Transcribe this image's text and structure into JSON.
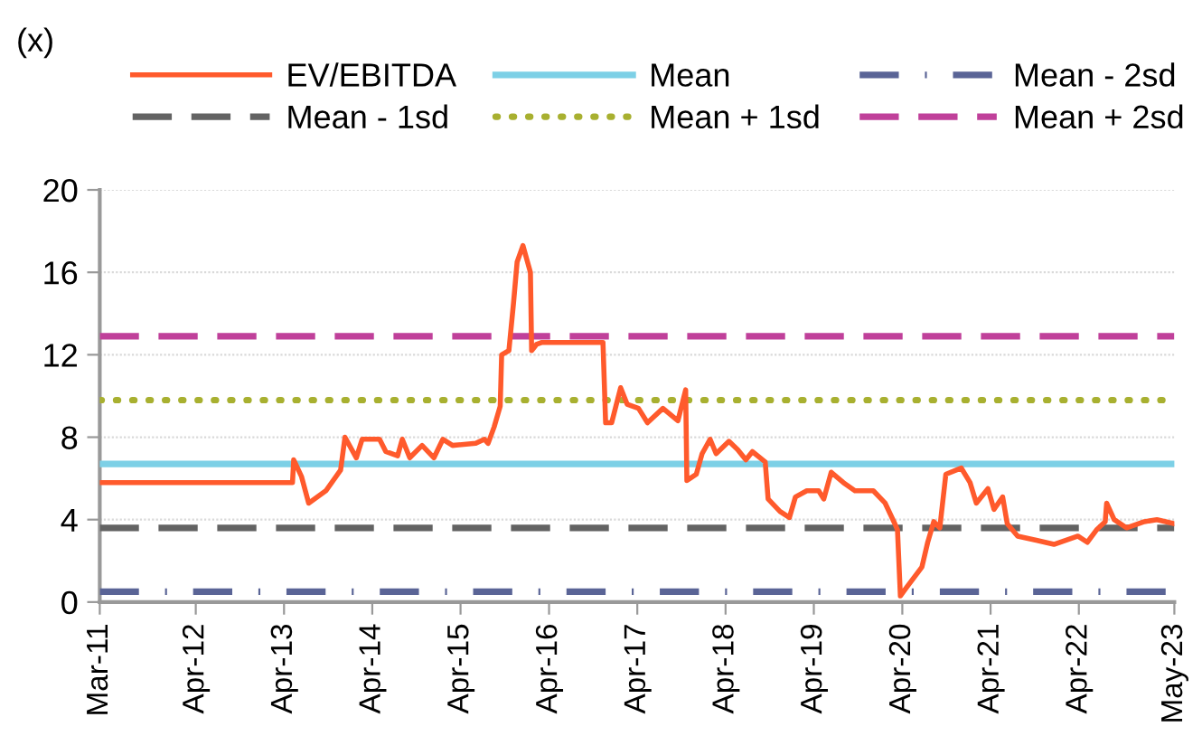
{
  "chart_data": {
    "type": "line",
    "ylabel": "(x)",
    "xlim": [
      "2011-03-01",
      "2023-05-01"
    ],
    "ylim": [
      0,
      20
    ],
    "yticks": [
      0,
      4,
      8,
      12,
      16,
      20
    ],
    "xticks": [
      {
        "value": "2011-03-01",
        "label": "Mar-11"
      },
      {
        "value": "2012-04-01",
        "label": "Apr-12"
      },
      {
        "value": "2013-04-01",
        "label": "Apr-13"
      },
      {
        "value": "2014-04-01",
        "label": "Apr-14"
      },
      {
        "value": "2015-04-01",
        "label": "Apr-15"
      },
      {
        "value": "2016-04-01",
        "label": "Apr-16"
      },
      {
        "value": "2017-04-01",
        "label": "Apr-17"
      },
      {
        "value": "2018-04-01",
        "label": "Apr-18"
      },
      {
        "value": "2019-04-01",
        "label": "Apr-19"
      },
      {
        "value": "2020-04-01",
        "label": "Apr-20"
      },
      {
        "value": "2021-04-01",
        "label": "Apr-21"
      },
      {
        "value": "2022-04-01",
        "label": "Apr-22"
      },
      {
        "value": "2023-05-01",
        "label": "May-23"
      }
    ],
    "grid": "y",
    "legend": "top",
    "series": [
      {
        "name": "EV/EBITDA",
        "color": "#ff5a2c",
        "line_style": "solid",
        "x": [
          "2011-03-01",
          "2013-05-06",
          "2013-05-11",
          "2013-06-12",
          "2013-07-12",
          "2013-09-21",
          "2013-11-21",
          "2013-12-09",
          "2014-01-25",
          "2014-02-18",
          "2014-05-01",
          "2014-05-27",
          "2014-07-15",
          "2014-08-03",
          "2014-09-03",
          "2014-10-24",
          "2014-12-12",
          "2015-01-18",
          "2015-02-27",
          "2015-06-03",
          "2015-07-09",
          "2015-07-24",
          "2015-08-18",
          "2015-09-12",
          "2015-09-18",
          "2015-10-18",
          "2015-11-06",
          "2015-11-21",
          "2015-12-15",
          "2016-01-03",
          "2016-01-15",
          "2016-01-20",
          "2016-02-09",
          "2016-03-03",
          "2016-11-10",
          "2016-11-21",
          "2016-12-16",
          "2017-01-22",
          "2017-02-18",
          "2017-04-06",
          "2017-05-13",
          "2017-07-16",
          "2017-09-16",
          "2017-10-18",
          "2017-10-23",
          "2017-12-01",
          "2017-12-25",
          "2018-01-27",
          "2018-02-21",
          "2018-04-15",
          "2018-05-21",
          "2018-06-24",
          "2018-07-21",
          "2018-09-12",
          "2018-09-24",
          "2018-11-12",
          "2018-12-21",
          "2019-01-15",
          "2019-03-03",
          "2019-04-21",
          "2019-05-12",
          "2019-06-12",
          "2019-08-01",
          "2019-09-18",
          "2019-12-03",
          "2020-01-21",
          "2020-03-01",
          "2020-03-12",
          "2020-03-24",
          "2020-04-18",
          "2020-06-21",
          "2020-07-15",
          "2020-08-09",
          "2020-09-03",
          "2020-09-28",
          "2020-12-01",
          "2021-01-06",
          "2021-02-01",
          "2021-03-21",
          "2021-04-15",
          "2021-05-21",
          "2021-06-09",
          "2021-07-22",
          "2021-10-07",
          "2021-12-19",
          "2022-03-28",
          "2022-05-06",
          "2022-06-13",
          "2022-07-19",
          "2022-07-25",
          "2022-08-25",
          "2022-10-15",
          "2022-12-28",
          "2023-02-18",
          "2023-05-01"
        ],
        "values": [
          5.8,
          5.8,
          6.9,
          6.1,
          4.8,
          5.4,
          6.4,
          8.0,
          7.0,
          7.9,
          7.9,
          7.3,
          7.1,
          7.9,
          7.0,
          7.6,
          7.0,
          7.9,
          7.6,
          7.7,
          7.9,
          7.7,
          8.5,
          9.5,
          12.0,
          12.2,
          14.5,
          16.5,
          17.3,
          16.5,
          16.0,
          12.2,
          12.5,
          12.6,
          12.6,
          8.7,
          8.7,
          10.4,
          9.6,
          9.4,
          8.7,
          9.4,
          8.8,
          10.3,
          5.9,
          6.2,
          7.2,
          7.9,
          7.2,
          7.8,
          7.4,
          6.9,
          7.3,
          6.8,
          5.0,
          4.4,
          4.1,
          5.1,
          5.4,
          5.4,
          5.0,
          6.3,
          5.8,
          5.4,
          5.4,
          4.8,
          3.8,
          3.5,
          0.3,
          0.7,
          1.7,
          2.9,
          3.9,
          3.6,
          6.2,
          6.5,
          5.8,
          4.8,
          5.5,
          4.5,
          5.1,
          3.8,
          3.2,
          3.0,
          2.8,
          3.2,
          2.9,
          3.5,
          3.9,
          4.8,
          4.0,
          3.6,
          3.9,
          4.0,
          3.8
        ]
      },
      {
        "name": "Mean - 1sd",
        "color": "#636363",
        "line_style": "dashed",
        "x": [
          "2011-03-01",
          "2023-05-01"
        ],
        "values": [
          3.6,
          3.6
        ]
      },
      {
        "name": "Mean",
        "color": "#7dd0e6",
        "line_style": "solid",
        "x": [
          "2011-03-01",
          "2023-05-01"
        ],
        "values": [
          6.7,
          6.7
        ]
      },
      {
        "name": "Mean + 1sd",
        "color": "#a8b030",
        "line_style": "dotted",
        "x": [
          "2011-03-01",
          "2023-05-01"
        ],
        "values": [
          9.8,
          9.8
        ]
      },
      {
        "name": "Mean - 2sd",
        "color": "#5a6496",
        "line_style": "dashdot",
        "x": [
          "2011-03-01",
          "2023-05-01"
        ],
        "values": [
          0.5,
          0.5
        ]
      },
      {
        "name": "Mean + 2sd",
        "color": "#c0409a",
        "line_style": "dashed",
        "x": [
          "2011-03-01",
          "2023-05-01"
        ],
        "values": [
          12.9,
          12.9
        ]
      }
    ]
  }
}
